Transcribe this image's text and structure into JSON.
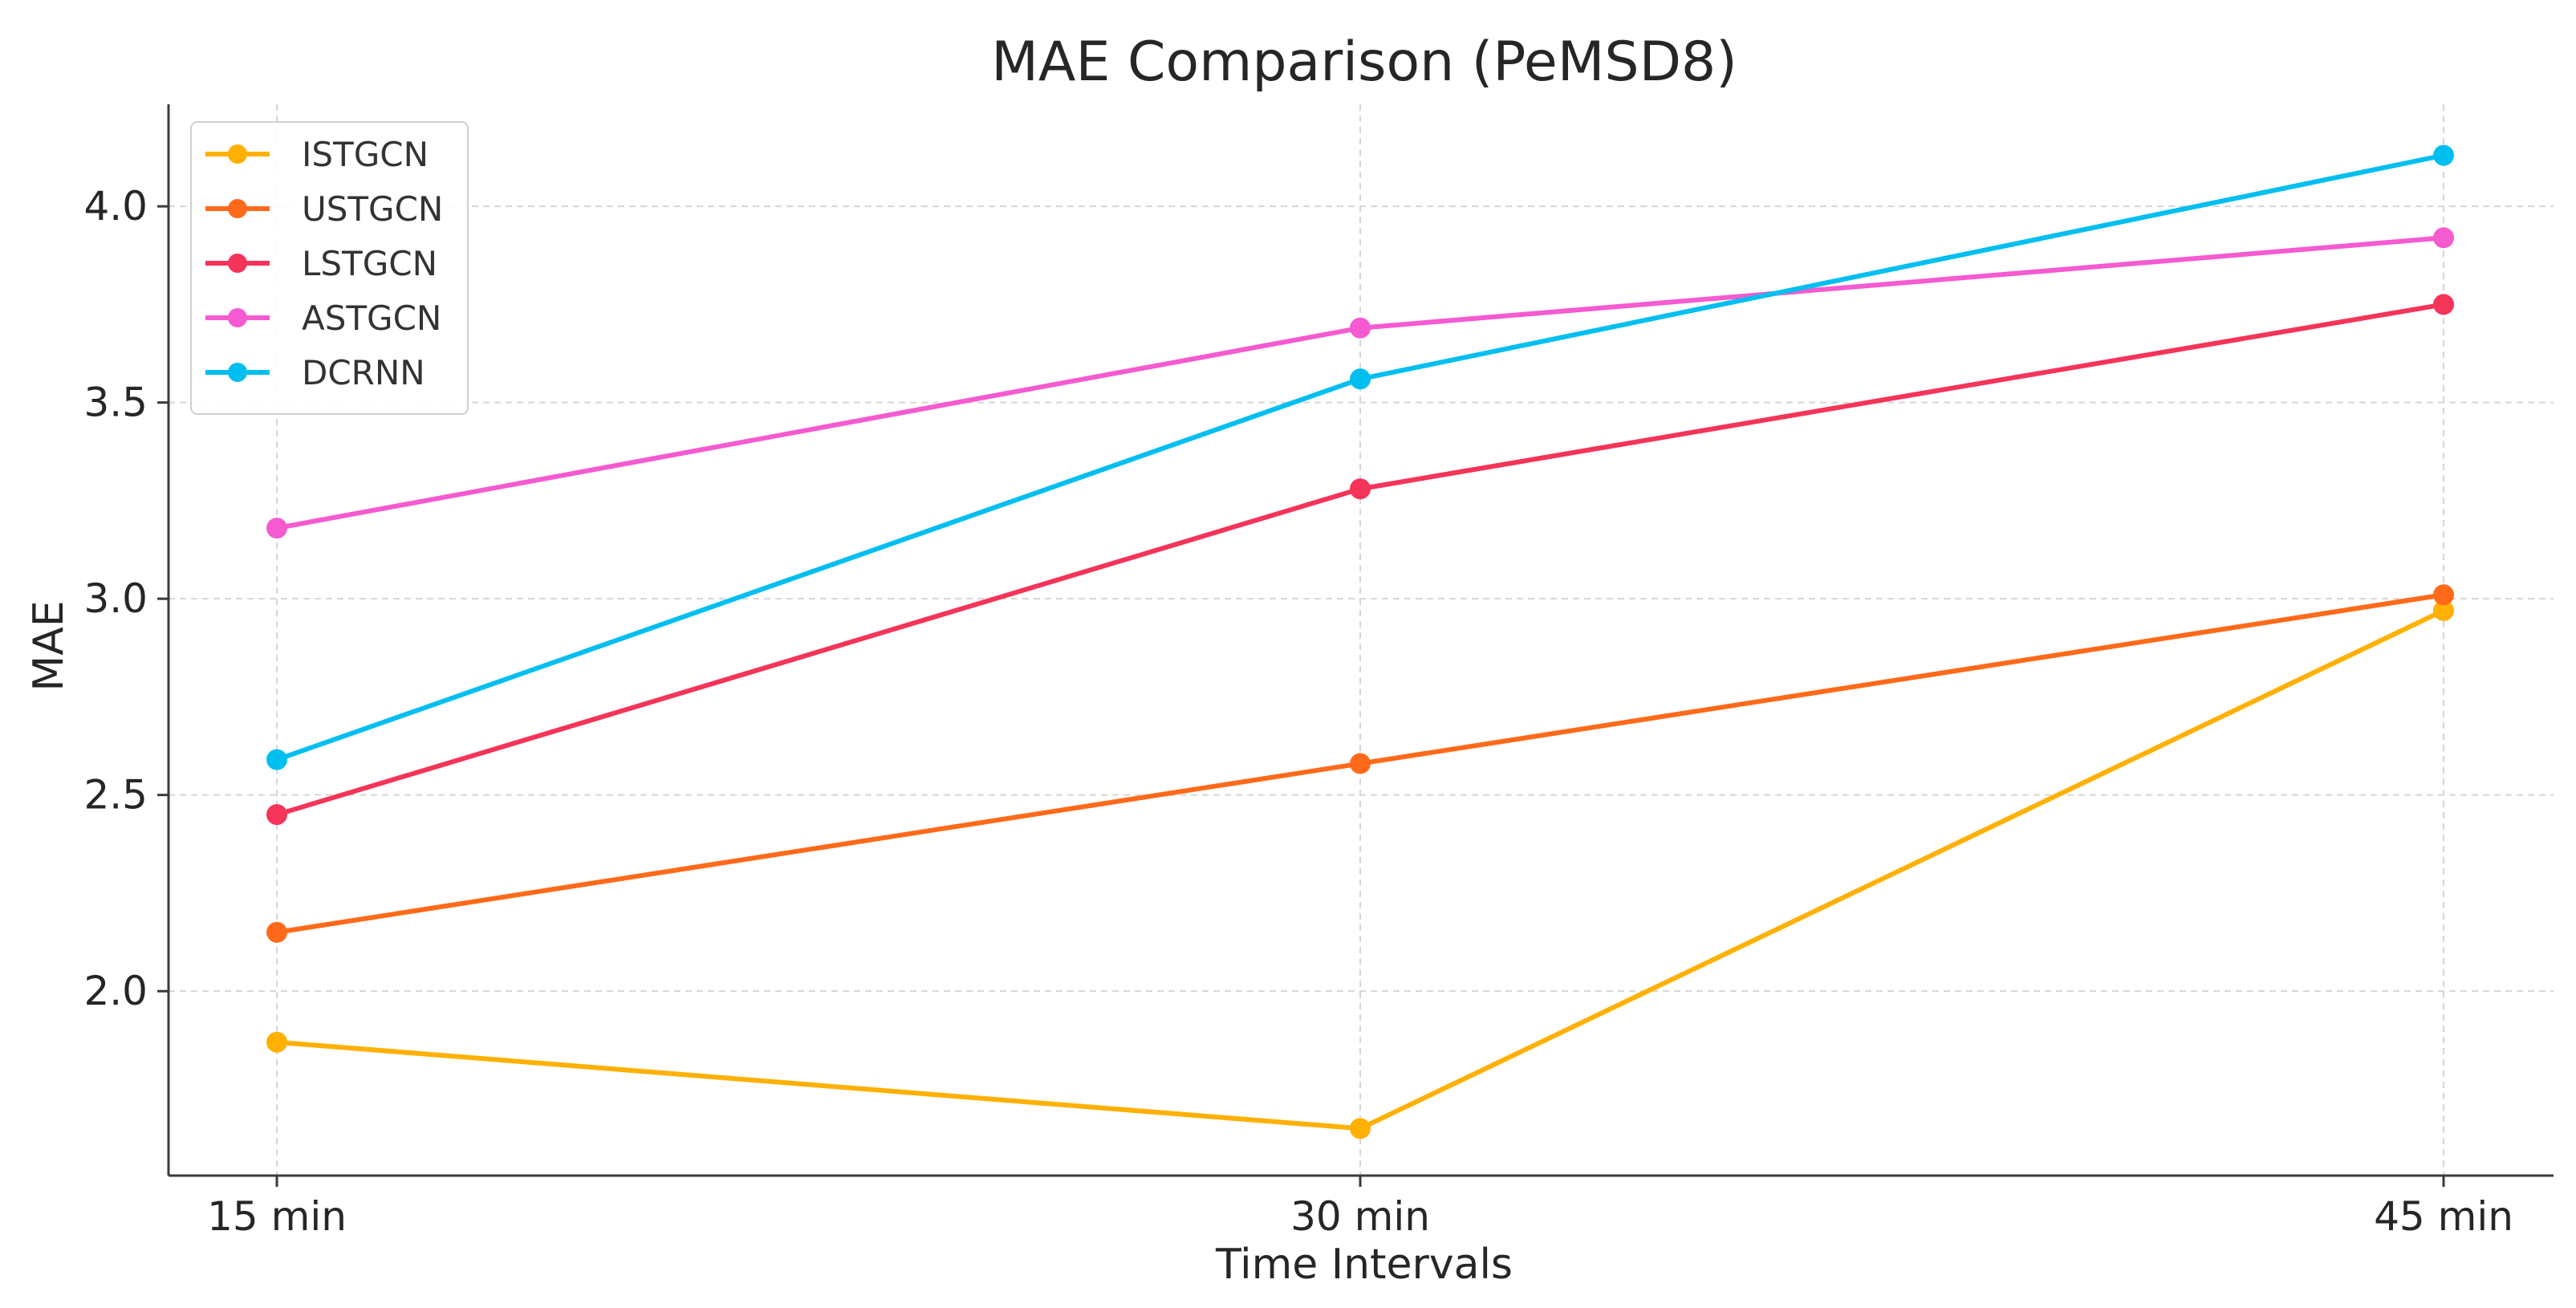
{
  "chart_data": {
    "type": "line",
    "title": "MAE Comparison (PeMSD8)",
    "xlabel": "Time Intervals",
    "ylabel": "MAE",
    "categories": [
      "15 min",
      "30 min",
      "45 min"
    ],
    "ylim": [
      1.53,
      4.26
    ],
    "yticks": [
      2.0,
      2.5,
      3.0,
      3.5,
      4.0
    ],
    "ytick_labels": [
      "2.0",
      "2.5",
      "3.0",
      "3.5",
      "4.0"
    ],
    "grid": true,
    "legend_position": "top-left",
    "series": [
      {
        "name": "ISTGCN",
        "color": "#ffb000",
        "values": [
          1.87,
          1.65,
          2.97
        ]
      },
      {
        "name": "USTGCN",
        "color": "#ff6a1a",
        "values": [
          2.15,
          2.58,
          3.01
        ]
      },
      {
        "name": "LSTGCN",
        "color": "#f5345a",
        "values": [
          2.45,
          3.28,
          3.75
        ]
      },
      {
        "name": "ASTGCN",
        "color": "#f55ad0",
        "values": [
          3.18,
          3.69,
          3.92
        ]
      },
      {
        "name": "DCRNN",
        "color": "#00bff0",
        "values": [
          2.59,
          3.56,
          4.13
        ]
      }
    ]
  }
}
